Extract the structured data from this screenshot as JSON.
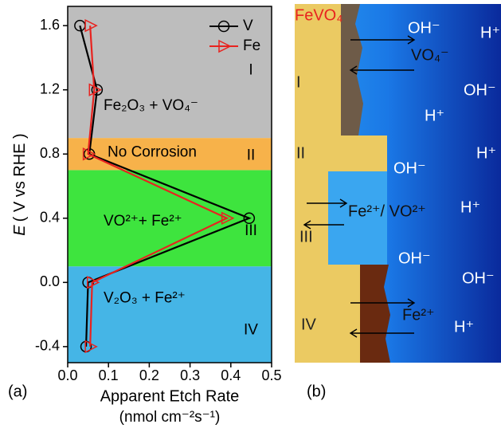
{
  "chart_data": {
    "type": "line",
    "panel_label": "(a)",
    "ylabel_symbol": "E",
    "ylabel": "( V vs RHE )",
    "xlabel": "Apparent Etch Rate",
    "xlabel_unit": "(nmol cm⁻²s⁻¹)",
    "xlim": [
      0,
      0.5
    ],
    "xticks": [
      {
        "value": 0,
        "label": "0.0"
      },
      0.1,
      0.2,
      0.3,
      0.4,
      0.5
    ],
    "ylim": [
      -0.5,
      1.72
    ],
    "yticks": [
      -0.4,
      {
        "value": 0,
        "label": "0.0"
      },
      0.4,
      0.8,
      1.2,
      1.6
    ],
    "legend": "top-right",
    "boundaries": [
      0.1,
      0.7,
      0.9
    ],
    "regions": [
      {
        "numeral": "IV",
        "label": "V₂O₃ + Fe²⁺",
        "color": "#45b5e6"
      },
      {
        "numeral": "III",
        "label": "VO²⁺+ Fe²⁺",
        "color": "#3ee43e"
      },
      {
        "numeral": "II",
        "label": "No Corrosion",
        "color": "#f7b24a"
      },
      {
        "numeral": "I",
        "label": "Fe₂O₃ + VO₄⁻",
        "color": "#bdbdbd"
      }
    ],
    "series": [
      {
        "name": "V",
        "color": "#000000",
        "marker": "circle",
        "x": [
          0.03,
          0.072,
          0.053,
          0.445,
          0.05,
          0.045
        ],
        "values": [
          1.6,
          1.2,
          0.8,
          0.4,
          0.0,
          -0.4
        ]
      },
      {
        "name": "Fe",
        "color": "#e8231f",
        "marker": "triangle-right",
        "x": [
          0.055,
          0.065,
          0.05,
          0.39,
          0.06,
          0.055
        ],
        "values": [
          1.6,
          1.2,
          0.8,
          0.4,
          0.0,
          -0.4
        ]
      }
    ]
  },
  "diagram": {
    "panel_label": "(b)",
    "labels": [
      "FeVO₄",
      "OH⁻",
      "H⁺",
      "VO₄⁻",
      "OH⁻",
      "I",
      "H⁺",
      "II",
      "H⁺",
      "OH⁻",
      "Fe²⁺/ VO²⁺",
      "H⁺",
      "III",
      "OH⁻",
      "OH⁻",
      "IV",
      "Fe²⁺",
      "H⁺"
    ]
  }
}
